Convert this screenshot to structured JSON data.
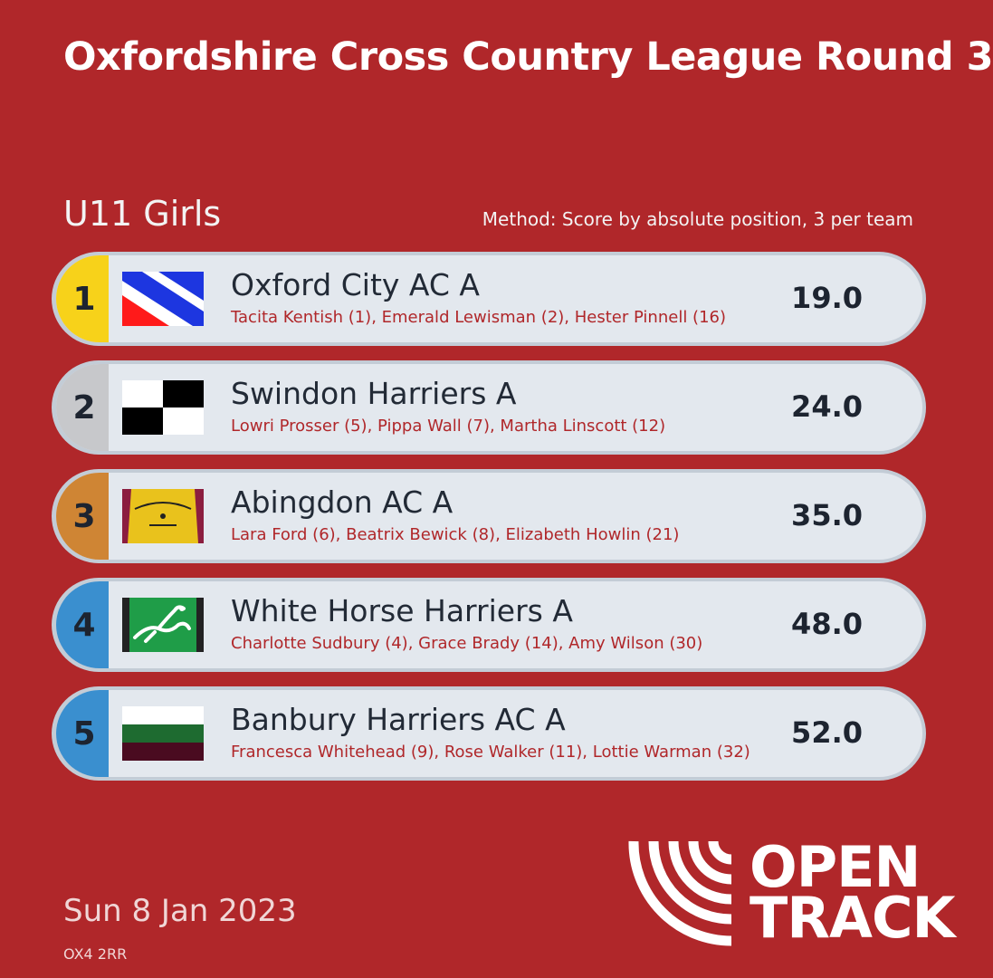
{
  "header": {
    "title": "Oxfordshire Cross Country League Round 3",
    "age_group": "U11 Girls",
    "method": "Method: Score by absolute position, 3 per team"
  },
  "results": [
    {
      "rank": "1",
      "team": "Oxford City AC A",
      "athletes": "Tacita Kentish (1), Emerald Lewisman (2), Hester Pinnell (16)",
      "score": "19.0",
      "badge_color": "#f7d21a",
      "flag_icon": "oxford-city-flag-icon"
    },
    {
      "rank": "2",
      "team": "Swindon Harriers A",
      "athletes": "Lowri Prosser (5), Pippa Wall (7), Martha Linscott (12)",
      "score": "24.0",
      "badge_color": "#c7c8cb",
      "flag_icon": "swindon-harriers-flag-icon"
    },
    {
      "rank": "3",
      "team": "Abingdon AC A",
      "athletes": "Lara Ford (6), Beatrix Bewick (8), Elizabeth Howlin (21)",
      "score": "35.0",
      "badge_color": "#cf8534",
      "flag_icon": "abingdon-vest-icon"
    },
    {
      "rank": "4",
      "team": "White Horse Harriers A",
      "athletes": "Charlotte Sudbury (4), Grace Brady (14), Amy Wilson (30)",
      "score": "48.0",
      "badge_color": "#3a8fcf",
      "flag_icon": "white-horse-flag-icon"
    },
    {
      "rank": "5",
      "team": "Banbury Harriers AC A",
      "athletes": "Francesca Whitehead (9), Rose Walker (11), Lottie Warman (32)",
      "score": "52.0",
      "badge_color": "#3a8fcf",
      "flag_icon": "banbury-flag-icon"
    }
  ],
  "footer": {
    "date": "Sun 8 Jan 2023",
    "postcode": "OX4 2RR",
    "logo_line1": "OPEN",
    "logo_line2": "TRACK"
  },
  "colors": {
    "background": "#b0272a",
    "row": "#e3e8ee",
    "athlete_text": "#b0272a"
  }
}
